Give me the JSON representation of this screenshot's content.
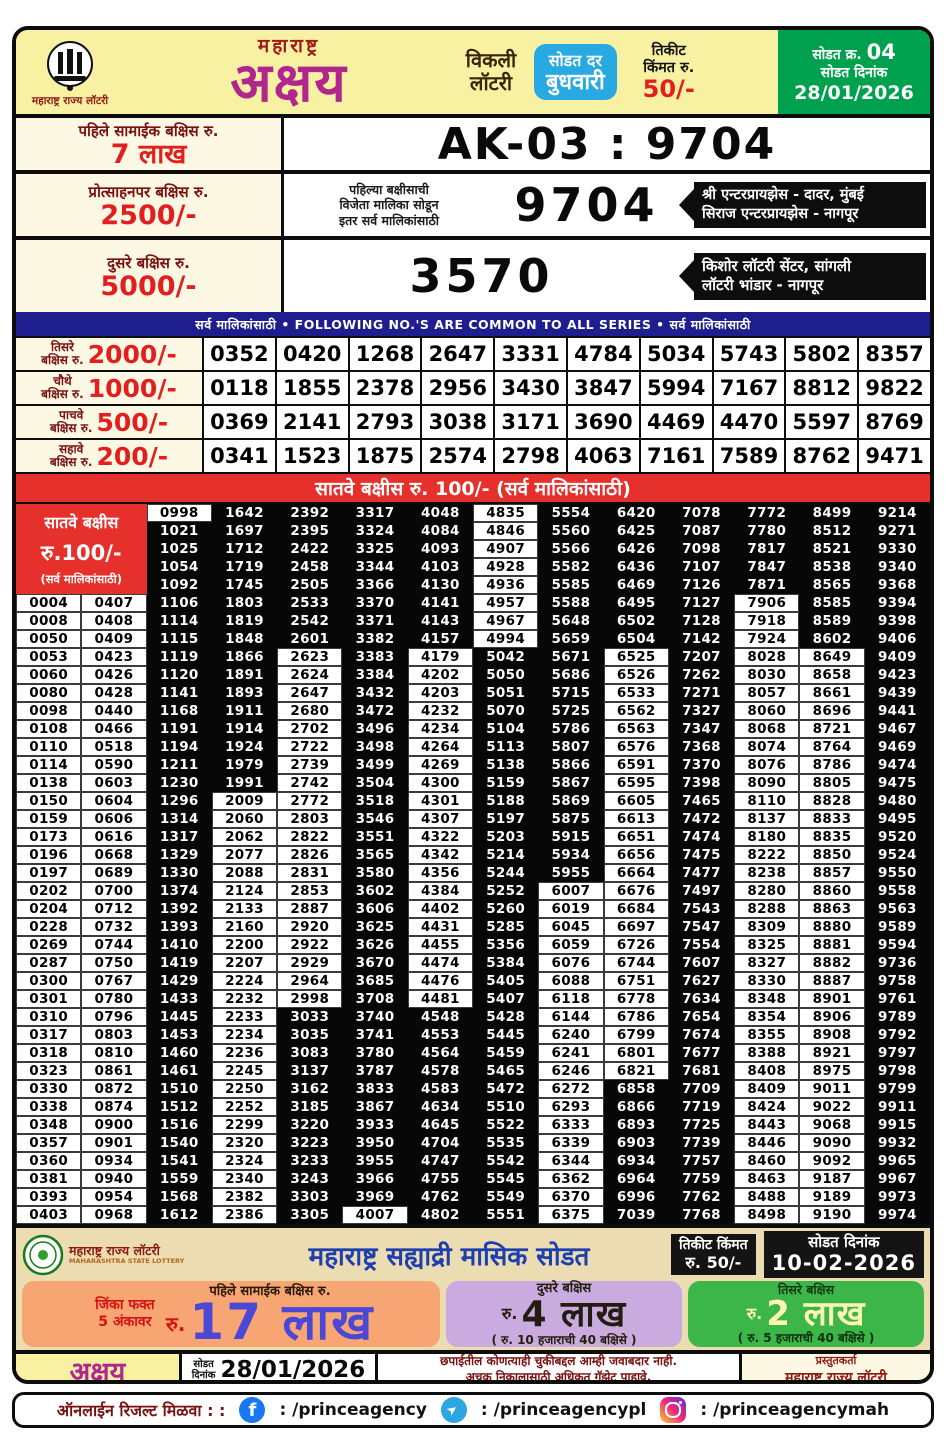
{
  "header": {
    "logo_caption": "महाराष्ट्र राज्य लॉटरी",
    "brand_top": "महाराष्ट्र",
    "brand_big": "अक्षय",
    "weekly1": "विकली",
    "weekly2": "लॉटरी",
    "day_label": "सोडत दर",
    "day": "बुधवारी",
    "ticket1": "तिकीट",
    "ticket2": "किंमत रु.",
    "price": "50/-",
    "draw_no_label": "सोडत क्र.",
    "draw_no": "04",
    "draw_date_label": "सोडत दिनांक",
    "draw_date": "28/01/2026"
  },
  "first_prize": {
    "label": "पहिले सामाईक बक्षिस रु.",
    "amount": "7 लाख",
    "result": "AK-03 : 9704"
  },
  "consolation": {
    "label": "प्रोत्साहनपर बक्षिस रु.",
    "amount": "2500/-",
    "note": [
      "पहिल्या बक्षीसाची",
      "विजेता मालिका सोडून",
      "इतर सर्व मालिकांसाठी"
    ],
    "number": "9704",
    "sellers": [
      "श्री एन्टरप्रायझेस - दादर, मुंबई",
      "सिराज एन्टरप्रायझेस - नागपूर"
    ]
  },
  "second_prize": {
    "label": "दुसरे बक्षिस रु.",
    "amount": "5000/-",
    "number": "3570",
    "sellers": [
      "किशोर लॉटरी सेंटर, सांगली",
      "लॉटरी भांडार - नागपूर"
    ]
  },
  "series_banner": "सर्व मालिकांसाठी  •  FOLLOWING NO.'S ARE COMMON TO ALL SERIES  •  सर्व मालिकांसाठी",
  "common_prizes": [
    {
      "rank": "तिसरे",
      "unit": "बक्षिस रु.",
      "amount": "2000/-",
      "numbers": [
        "0352",
        "0420",
        "1268",
        "2647",
        "3331",
        "4784",
        "5034",
        "5743",
        "5802",
        "8357"
      ]
    },
    {
      "rank": "चौथे",
      "unit": "बक्षिस रु.",
      "amount": "1000/-",
      "numbers": [
        "0118",
        "1855",
        "2378",
        "2956",
        "3430",
        "3847",
        "5994",
        "7167",
        "8812",
        "9822"
      ]
    },
    {
      "rank": "पाचवे",
      "unit": "बक्षिस रु.",
      "amount": "500/-",
      "numbers": [
        "0369",
        "2141",
        "2793",
        "3038",
        "3171",
        "3690",
        "4469",
        "4470",
        "5597",
        "8769"
      ]
    },
    {
      "rank": "सहावे",
      "unit": "बक्षिस रु.",
      "amount": "200/-",
      "numbers": [
        "0341",
        "1523",
        "1875",
        "2574",
        "2798",
        "4063",
        "7161",
        "7589",
        "8762",
        "9471"
      ]
    }
  ],
  "seventh_prize": {
    "banner": "सातवे बक्षीस रु. 100/-  (सर्व मालिकांसाठी)",
    "label1": "सातवे बक्षीस",
    "label2": "रु.100/-",
    "label3": "(सर्व मालिकांसाठी)",
    "black_columns": {
      "3": [
        [
          2,
          40
        ]
      ],
      "4": [
        [
          1,
          16
        ]
      ],
      "5": [
        [
          1,
          8
        ],
        [
          29,
          40
        ]
      ],
      "6": [
        [
          1,
          39
        ]
      ],
      "7": [
        [
          1,
          8
        ],
        [
          29,
          40
        ]
      ],
      "8": [
        [
          9,
          40
        ]
      ],
      "9": [
        [
          1,
          21
        ]
      ],
      "10": [
        [
          1,
          8
        ],
        [
          33,
          40
        ]
      ],
      "11": [
        [
          1,
          40
        ]
      ],
      "12": [
        [
          1,
          5
        ]
      ],
      "13": [
        [
          1,
          8
        ]
      ],
      "14": [
        [
          1,
          40
        ]
      ]
    },
    "rows": [
      [
        "0998",
        "1642",
        "2392",
        "3317",
        "4048",
        "4835",
        "5554",
        "6420",
        "7078",
        "7772",
        "8499",
        "9214"
      ],
      [
        "1021",
        "1697",
        "2395",
        "3324",
        "4084",
        "4846",
        "5560",
        "6425",
        "7087",
        "7780",
        "8512",
        "9271"
      ],
      [
        "1025",
        "1712",
        "2422",
        "3325",
        "4093",
        "4907",
        "5566",
        "6426",
        "7098",
        "7817",
        "8521",
        "9330"
      ],
      [
        "1054",
        "1719",
        "2458",
        "3344",
        "4103",
        "4928",
        "5582",
        "6436",
        "7107",
        "7847",
        "8538",
        "9340"
      ],
      [
        "1092",
        "1745",
        "2505",
        "3366",
        "4130",
        "4936",
        "5585",
        "6469",
        "7126",
        "7871",
        "8565",
        "9368"
      ],
      [
        "0004",
        "0407",
        "1106",
        "1803",
        "2533",
        "3370",
        "4141",
        "4957",
        "5588",
        "6495",
        "7127",
        "7906",
        "8585",
        "9394"
      ],
      [
        "0008",
        "0408",
        "1114",
        "1819",
        "2542",
        "3371",
        "4143",
        "4967",
        "5648",
        "6502",
        "7128",
        "7918",
        "8589",
        "9398"
      ],
      [
        "0050",
        "0409",
        "1115",
        "1848",
        "2601",
        "3382",
        "4157",
        "4994",
        "5659",
        "6504",
        "7142",
        "7924",
        "8602",
        "9406"
      ],
      [
        "0053",
        "0423",
        "1119",
        "1866",
        "2623",
        "3383",
        "4179",
        "5042",
        "5671",
        "6525",
        "7207",
        "8028",
        "8649",
        "9409"
      ],
      [
        "0060",
        "0426",
        "1120",
        "1891",
        "2624",
        "3384",
        "4202",
        "5050",
        "5686",
        "6526",
        "7262",
        "8030",
        "8658",
        "9423"
      ],
      [
        "0080",
        "0428",
        "1141",
        "1893",
        "2647",
        "3432",
        "4203",
        "5051",
        "5715",
        "6533",
        "7271",
        "8057",
        "8661",
        "9439"
      ],
      [
        "0098",
        "0440",
        "1168",
        "1911",
        "2680",
        "3472",
        "4232",
        "5070",
        "5725",
        "6562",
        "7327",
        "8060",
        "8696",
        "9441"
      ],
      [
        "0108",
        "0466",
        "1191",
        "1914",
        "2702",
        "3496",
        "4234",
        "5104",
        "5786",
        "6563",
        "7347",
        "8068",
        "8721",
        "9467"
      ],
      [
        "0110",
        "0518",
        "1194",
        "1924",
        "2722",
        "3498",
        "4264",
        "5113",
        "5807",
        "6576",
        "7368",
        "8074",
        "8764",
        "9469"
      ],
      [
        "0114",
        "0590",
        "1211",
        "1979",
        "2739",
        "3499",
        "4269",
        "5138",
        "5866",
        "6591",
        "7370",
        "8076",
        "8786",
        "9474"
      ],
      [
        "0138",
        "0603",
        "1230",
        "1991",
        "2742",
        "3504",
        "4300",
        "5159",
        "5867",
        "6595",
        "7398",
        "8090",
        "8805",
        "9475"
      ],
      [
        "0150",
        "0604",
        "1296",
        "2009",
        "2772",
        "3518",
        "4301",
        "5188",
        "5869",
        "6605",
        "7465",
        "8110",
        "8828",
        "9480"
      ],
      [
        "0159",
        "0606",
        "1314",
        "2060",
        "2803",
        "3546",
        "4307",
        "5197",
        "5875",
        "6613",
        "7472",
        "8137",
        "8833",
        "9495"
      ],
      [
        "0173",
        "0616",
        "1317",
        "2062",
        "2822",
        "3551",
        "4322",
        "5203",
        "5915",
        "6651",
        "7474",
        "8180",
        "8835",
        "9520"
      ],
      [
        "0196",
        "0668",
        "1329",
        "2077",
        "2826",
        "3565",
        "4342",
        "5214",
        "5934",
        "6656",
        "7475",
        "8222",
        "8850",
        "9524"
      ],
      [
        "0197",
        "0689",
        "1330",
        "2088",
        "2831",
        "3580",
        "4356",
        "5244",
        "5955",
        "6664",
        "7477",
        "8238",
        "8857",
        "9550"
      ],
      [
        "0202",
        "0700",
        "1374",
        "2124",
        "2853",
        "3602",
        "4384",
        "5252",
        "6007",
        "6676",
        "7497",
        "8280",
        "8860",
        "9558"
      ],
      [
        "0204",
        "0712",
        "1392",
        "2133",
        "2887",
        "3606",
        "4402",
        "5260",
        "6019",
        "6684",
        "7543",
        "8288",
        "8863",
        "9563"
      ],
      [
        "0228",
        "0732",
        "1393",
        "2160",
        "2920",
        "3625",
        "4431",
        "5285",
        "6045",
        "6697",
        "7547",
        "8309",
        "8880",
        "9589"
      ],
      [
        "0269",
        "0744",
        "1410",
        "2200",
        "2922",
        "3626",
        "4455",
        "5356",
        "6059",
        "6726",
        "7554",
        "8325",
        "8881",
        "9594"
      ],
      [
        "0287",
        "0750",
        "1419",
        "2207",
        "2929",
        "3670",
        "4474",
        "5384",
        "6076",
        "6744",
        "7607",
        "8327",
        "8882",
        "9736"
      ],
      [
        "0300",
        "0767",
        "1429",
        "2224",
        "2964",
        "3685",
        "4476",
        "5405",
        "6088",
        "6751",
        "7627",
        "8330",
        "8887",
        "9758"
      ],
      [
        "0301",
        "0780",
        "1433",
        "2232",
        "2998",
        "3708",
        "4481",
        "5407",
        "6118",
        "6778",
        "7634",
        "8348",
        "8901",
        "9761"
      ],
      [
        "0310",
        "0796",
        "1445",
        "2233",
        "3033",
        "3740",
        "4548",
        "5428",
        "6144",
        "6786",
        "7654",
        "8354",
        "8906",
        "9789"
      ],
      [
        "0317",
        "0803",
        "1453",
        "2234",
        "3035",
        "3741",
        "4553",
        "5445",
        "6240",
        "6799",
        "7674",
        "8355",
        "8908",
        "9792"
      ],
      [
        "0318",
        "0810",
        "1460",
        "2236",
        "3083",
        "3780",
        "4564",
        "5459",
        "6241",
        "6801",
        "7677",
        "8388",
        "8921",
        "9797"
      ],
      [
        "0323",
        "0861",
        "1461",
        "2245",
        "3137",
        "3787",
        "4578",
        "5465",
        "6246",
        "6821",
        "7681",
        "8408",
        "8975",
        "9798"
      ],
      [
        "0330",
        "0872",
        "1510",
        "2250",
        "3162",
        "3833",
        "4583",
        "5472",
        "6272",
        "6858",
        "7709",
        "8409",
        "9011",
        "9799"
      ],
      [
        "0338",
        "0874",
        "1512",
        "2252",
        "3185",
        "3867",
        "4634",
        "5510",
        "6293",
        "6866",
        "7719",
        "8424",
        "9022",
        "9911"
      ],
      [
        "0348",
        "0900",
        "1516",
        "2299",
        "3220",
        "3933",
        "4645",
        "5522",
        "6333",
        "6893",
        "7725",
        "8443",
        "9068",
        "9915"
      ],
      [
        "0357",
        "0901",
        "1540",
        "2320",
        "3223",
        "3950",
        "4704",
        "5535",
        "6339",
        "6903",
        "7739",
        "8446",
        "9090",
        "9932"
      ],
      [
        "0360",
        "0934",
        "1541",
        "2324",
        "3233",
        "3955",
        "4747",
        "5542",
        "6344",
        "6934",
        "7757",
        "8460",
        "9092",
        "9965"
      ],
      [
        "0381",
        "0940",
        "1559",
        "2340",
        "3243",
        "3966",
        "4755",
        "5545",
        "6362",
        "6964",
        "7759",
        "8463",
        "9187",
        "9967"
      ],
      [
        "0393",
        "0954",
        "1568",
        "2382",
        "3303",
        "3969",
        "4762",
        "5549",
        "6370",
        "6996",
        "7762",
        "8488",
        "9189",
        "9973"
      ],
      [
        "0403",
        "0968",
        "1612",
        "2386",
        "3305",
        "4007",
        "4802",
        "5551",
        "6375",
        "7039",
        "7768",
        "8498",
        "9190",
        "9974"
      ]
    ]
  },
  "promo": {
    "logo_line1": "महाराष्ट्र राज्य लॉटरी",
    "logo_line2": "MAHARASHTRA STATE LOTTERY",
    "title": "महाराष्ट्र सह्याद्री मासिक सोडत",
    "ticket_label": "तिकीट किंमत",
    "ticket_price": "रु. 50/-",
    "date_label": "सोडत दिनांक",
    "date": "10-02-2026",
    "win_note1": "जिंका फक्त",
    "win_note2": "5 अंकावर",
    "first_label": "पहिले सामाईक बक्षिस रु.",
    "first_rs": "रु.",
    "first_amount": "17 लाख",
    "second_label": "दुसरे बक्षिस",
    "second_rs": "रु.",
    "second_amount": "4 लाख",
    "second_note": "( रु. 10 हजाराची 40 बक्षिसे )",
    "third_label": "तिसरे बक्षिस",
    "third_rs": "रु.",
    "third_amount": "2 लाख",
    "third_note": "( रु. 5 हजाराची 40 बक्षिसे )"
  },
  "footer": {
    "brand": "अक्षय",
    "date_label1": "सोडत",
    "date_label2": "दिनांक",
    "date": "28/01/2026",
    "disclaimer1": "छपाईतील कोणत्याही चुकीबद्दल आम्ही जवाबदार नाही.",
    "disclaimer2": "अचूक निकालासाठी अधिकृत गॅझेट पाहावे.",
    "presenter_label": "प्रस्तुतकर्ता",
    "presenter": "महाराष्ट्र राज्य लॉटरी"
  },
  "social": {
    "label": "ऑनलाईन रिजल्ट मिळवा : :",
    "facebook": ": /princeagency",
    "telegram": ": /princeagencypl",
    "instagram": ": /princeagencymah"
  },
  "colors": {
    "header_yellow": "#f9f1a2",
    "magenta": "#b1268e",
    "day_blue": "#29a9e1",
    "green": "#00a14e",
    "red": "#e31e1e",
    "navy": "#1e1e8e",
    "banner_red": "#e5302b",
    "grid_black": "#070707",
    "promo_tan": "#ecdcb2",
    "promo_orange": "#f7a572",
    "promo_lavender": "#c9abdf",
    "promo_green": "#3cb549"
  }
}
